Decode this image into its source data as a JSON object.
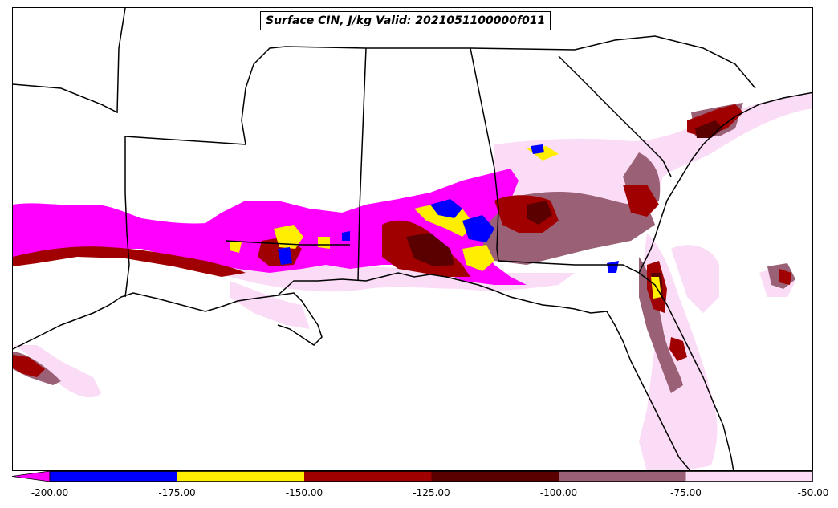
{
  "title": "Surface CIN, J/kg Valid: 2021051100000f011",
  "colorbar": {
    "extend": "min",
    "ticks": [
      "-200.00",
      "-175.00",
      "-150.00",
      "-125.00",
      "-100.00",
      "-75.00",
      "-50.00"
    ],
    "colors": [
      "#ff00ff",
      "#0000ff",
      "#ffee00",
      "#a00000",
      "#5a0000",
      "#9a6075",
      "#fbdcf6"
    ],
    "bins": [
      {
        "range": "< -200",
        "color": "#ff00ff"
      },
      {
        "range": "-200 to -175",
        "color": "#0000ff"
      },
      {
        "range": "-175 to -150",
        "color": "#ffee00"
      },
      {
        "range": "-150 to -125",
        "color": "#a00000"
      },
      {
        "range": "-125 to -100",
        "color": "#5a0000"
      },
      {
        "range": "-100 to -75",
        "color": "#9a6075"
      },
      {
        "range": "-75 to -50",
        "color": "#fbdcf6"
      }
    ]
  },
  "map": {
    "region": "Southeastern United States and Gulf of Mexico",
    "variable": "Surface CIN",
    "units": "J/kg"
  }
}
